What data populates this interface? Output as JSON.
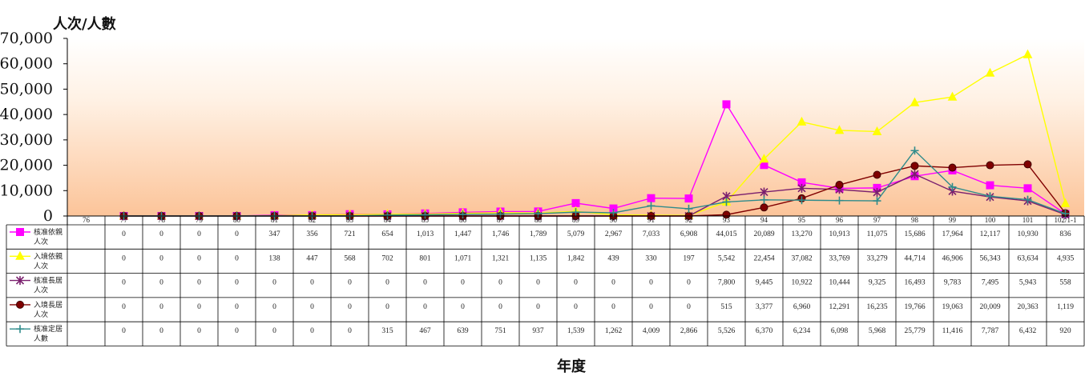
{
  "chart_data": {
    "type": "line",
    "title": "",
    "ylabel": "人次/人數",
    "xlabel": "年度",
    "ylim": [
      0,
      70000
    ],
    "yticks": [
      "0",
      "10,000",
      "20,000",
      "30,000",
      "40,000",
      "50,000",
      "60,000",
      "70,000"
    ],
    "categories": [
      "76",
      "77",
      "78",
      "79",
      "80",
      "81",
      "82",
      "83",
      "84",
      "85",
      "86",
      "87",
      "88",
      "89",
      "90",
      "91",
      "92",
      "93",
      "94",
      "95",
      "96",
      "97",
      "98",
      "99",
      "100",
      "101",
      "102/1-1"
    ],
    "legend_position": "table-left",
    "series": [
      {
        "name_line1": "核准依親",
        "name_line2": "人次",
        "color": "#ff00ff",
        "marker": "square",
        "values": [
          null,
          0,
          0,
          0,
          0,
          347,
          356,
          721,
          654,
          1013,
          1447,
          1746,
          1789,
          5079,
          2967,
          7033,
          6908,
          44015,
          20089,
          13270,
          10913,
          11075,
          15686,
          17964,
          12117,
          10930,
          836
        ],
        "labels": [
          "",
          "0",
          "0",
          "0",
          "0",
          "347",
          "356",
          "721",
          "654",
          "1,013",
          "1,447",
          "1,746",
          "1,789",
          "5,079",
          "2,967",
          "7,033",
          "6,908",
          "44,015",
          "20,089",
          "13,270",
          "10,913",
          "11,075",
          "15,686",
          "17,964",
          "12,117",
          "10,930",
          "836"
        ]
      },
      {
        "name_line1": "入境依親",
        "name_line2": "人次",
        "color": "#ffff00",
        "marker": "triangle",
        "values": [
          null,
          0,
          0,
          0,
          0,
          138,
          447,
          568,
          702,
          801,
          1071,
          1321,
          1135,
          1842,
          439,
          330,
          197,
          5542,
          22454,
          37082,
          33769,
          33279,
          44714,
          46906,
          56343,
          63634,
          4935
        ],
        "labels": [
          "",
          "0",
          "0",
          "0",
          "0",
          "138",
          "447",
          "568",
          "702",
          "801",
          "1,071",
          "1,321",
          "1,135",
          "1,842",
          "439",
          "330",
          "197",
          "5,542",
          "22,454",
          "37,082",
          "33,769",
          "33,279",
          "44,714",
          "46,906",
          "56,343",
          "63,634",
          "4,935"
        ]
      },
      {
        "name_line1": "核准長居",
        "name_line2": "人次",
        "color": "#7a1f6e",
        "marker": "asterisk",
        "values": [
          null,
          0,
          0,
          0,
          0,
          0,
          0,
          0,
          0,
          0,
          0,
          0,
          0,
          0,
          0,
          0,
          0,
          7800,
          9445,
          10922,
          10444,
          9325,
          16493,
          9783,
          7495,
          5943,
          558
        ],
        "labels": [
          "",
          "0",
          "0",
          "0",
          "0",
          "0",
          "0",
          "0",
          "0",
          "0",
          "0",
          "0",
          "0",
          "0",
          "0",
          "0",
          "0",
          "7,800",
          "9,445",
          "10,922",
          "10,444",
          "9,325",
          "16,493",
          "9,783",
          "7,495",
          "5,943",
          "558"
        ]
      },
      {
        "name_line1": "入境長居",
        "name_line2": "人次",
        "color": "#800000",
        "marker": "circle",
        "values": [
          null,
          0,
          0,
          0,
          0,
          0,
          0,
          0,
          0,
          0,
          0,
          0,
          0,
          0,
          0,
          0,
          0,
          515,
          3377,
          6960,
          12291,
          16235,
          19766,
          19063,
          20009,
          20363,
          1119
        ],
        "labels": [
          "",
          "0",
          "0",
          "0",
          "0",
          "0",
          "0",
          "0",
          "0",
          "0",
          "0",
          "0",
          "0",
          "0",
          "0",
          "0",
          "0",
          "515",
          "3,377",
          "6,960",
          "12,291",
          "16,235",
          "19,766",
          "19,063",
          "20,009",
          "20,363",
          "1,119"
        ]
      },
      {
        "name_line1": "核准定居",
        "name_line2": "人數",
        "color": "#2e8b8b",
        "marker": "plus",
        "values": [
          null,
          0,
          0,
          0,
          0,
          0,
          0,
          0,
          315,
          467,
          639,
          751,
          937,
          1539,
          1262,
          4009,
          2866,
          5526,
          6370,
          6234,
          6098,
          5968,
          25779,
          11416,
          7787,
          6432,
          920
        ],
        "labels": [
          "",
          "0",
          "0",
          "0",
          "0",
          "0",
          "0",
          "0",
          "315",
          "467",
          "639",
          "751",
          "937",
          "1,539",
          "1,262",
          "4,009",
          "2,866",
          "5,526",
          "6,370",
          "6,234",
          "6,098",
          "5,968",
          "25,779",
          "11,416",
          "7,787",
          "6,432",
          "920"
        ]
      }
    ]
  }
}
